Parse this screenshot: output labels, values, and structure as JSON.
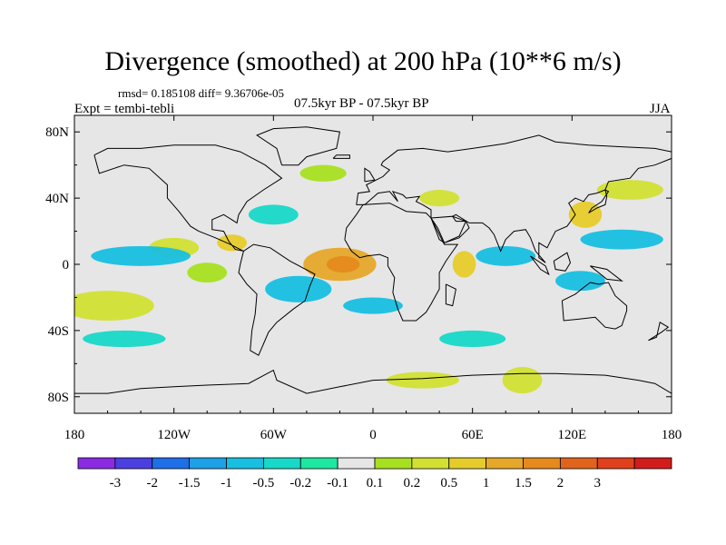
{
  "figure": {
    "title": "Divergence (smoothed) at 200 hPa (10**6 m/s)",
    "stats": "rmsd= 0.185108 diff= 9.36706e-05",
    "expt": "Expt = tembi-tebli",
    "comparison": "07.5kyr BP - 07.5kyr BP",
    "season": "JJA"
  },
  "axes": {
    "lon_range": [
      -180,
      180
    ],
    "lat_range": [
      -90,
      90
    ],
    "x_ticks": [
      {
        "lon": -180,
        "label": "180"
      },
      {
        "lon": -120,
        "label": "120W"
      },
      {
        "lon": -60,
        "label": "60W"
      },
      {
        "lon": 0,
        "label": "0"
      },
      {
        "lon": 60,
        "label": "60E"
      },
      {
        "lon": 120,
        "label": "120E"
      },
      {
        "lon": 180,
        "label": "180"
      }
    ],
    "y_ticks": [
      {
        "lat": 80,
        "label": "80N"
      },
      {
        "lat": 40,
        "label": "40N"
      },
      {
        "lat": 0,
        "label": "0"
      },
      {
        "lat": -40,
        "label": "40S"
      },
      {
        "lat": -80,
        "label": "80S"
      }
    ]
  },
  "colorbar": {
    "colors": [
      "#8a2be2",
      "#4b3fe0",
      "#1e6fe8",
      "#1da0e6",
      "#18bfe0",
      "#18d8c8",
      "#1ee8a0",
      "#e6e6e6",
      "#a8e020",
      "#d2e034",
      "#e6cc2a",
      "#e6a82a",
      "#e68a1e",
      "#e0641c",
      "#e0401c",
      "#d21c1c"
    ],
    "labels": [
      "-3",
      "-2",
      "-1.5",
      "-1",
      "-0.5",
      "-0.2",
      "-0.1",
      "0.1",
      "0.2",
      "0.5",
      "1",
      "1.5",
      "2",
      "3"
    ]
  },
  "colors": {
    "ocean_background": "#e6e6e6",
    "coastline": "#000000"
  },
  "chart_data": {
    "type": "filled contour map",
    "title": "Divergence (smoothed) at 200 hPa (10**6 m/s)",
    "units": "10**6 m/s",
    "levels": [
      -3,
      -2,
      -1.5,
      -1,
      -0.5,
      -0.2,
      -0.1,
      0.1,
      0.2,
      0.5,
      1,
      1.5,
      2,
      3
    ],
    "features": [
      {
        "name": "tropical-atlantic-max",
        "lon": -20,
        "lat": 0,
        "rx": 22,
        "ry": 10,
        "value": 1.5
      },
      {
        "name": "tropical-atlantic-core",
        "lon": -18,
        "lat": 0,
        "rx": 10,
        "ry": 5,
        "value": 2
      },
      {
        "name": "indian-ocean-max",
        "lon": 55,
        "lat": 0,
        "rx": 7,
        "ry": 8,
        "value": 1
      },
      {
        "name": "south-pacific-max",
        "lon": -160,
        "lat": -25,
        "rx": 28,
        "ry": 9,
        "value": 0.5
      },
      {
        "name": "east-pacific-max",
        "lon": -120,
        "lat": 10,
        "rx": 15,
        "ry": 6,
        "value": 0.5
      },
      {
        "name": "central-america-max",
        "lon": -85,
        "lat": 13,
        "rx": 9,
        "ry": 5,
        "value": 1
      },
      {
        "name": "west-pacific-max",
        "lon": 128,
        "lat": 30,
        "rx": 10,
        "ry": 8,
        "value": 1
      },
      {
        "name": "southern-ocean-max",
        "lon": 90,
        "lat": -70,
        "rx": 12,
        "ry": 8,
        "value": 0.5
      },
      {
        "name": "southern-africa-max",
        "lon": 30,
        "lat": -70,
        "rx": 22,
        "ry": 5,
        "value": 0.5
      },
      {
        "name": "north-pacific-max",
        "lon": 155,
        "lat": 45,
        "rx": 20,
        "ry": 6,
        "value": 0.5
      },
      {
        "name": "north-africa-max",
        "lon": 40,
        "lat": 40,
        "rx": 12,
        "ry": 5,
        "value": 0.5
      },
      {
        "name": "north-atlantic-max",
        "lon": -30,
        "lat": 55,
        "rx": 14,
        "ry": 5,
        "value": 0.2
      },
      {
        "name": "tropical-pacific-min",
        "lon": -140,
        "lat": 5,
        "rx": 30,
        "ry": 6,
        "value": -0.5
      },
      {
        "name": "south-america-min",
        "lon": -45,
        "lat": -15,
        "rx": 20,
        "ry": 8,
        "value": -0.5
      },
      {
        "name": "indian-ocean-min",
        "lon": 80,
        "lat": 5,
        "rx": 18,
        "ry": 6,
        "value": -0.5
      },
      {
        "name": "west-pacific-min",
        "lon": 150,
        "lat": 15,
        "rx": 25,
        "ry": 6,
        "value": -0.5
      },
      {
        "name": "south-atlantic-min",
        "lon": 0,
        "lat": -25,
        "rx": 18,
        "ry": 5,
        "value": -0.5
      },
      {
        "name": "north-atlantic-min",
        "lon": -60,
        "lat": 30,
        "rx": 15,
        "ry": 6,
        "value": -0.2
      },
      {
        "name": "southern-pacific-min",
        "lon": -150,
        "lat": -45,
        "rx": 25,
        "ry": 5,
        "value": -0.2
      },
      {
        "name": "southern-ocean-min",
        "lon": 60,
        "lat": -45,
        "rx": 20,
        "ry": 5,
        "value": -0.2
      },
      {
        "name": "maritime-continent-min",
        "lon": 125,
        "lat": -10,
        "rx": 15,
        "ry": 6,
        "value": -0.5
      },
      {
        "name": "tropical-eastpac-max",
        "lon": -100,
        "lat": -5,
        "rx": 12,
        "ry": 6,
        "value": 0.2
      }
    ]
  }
}
